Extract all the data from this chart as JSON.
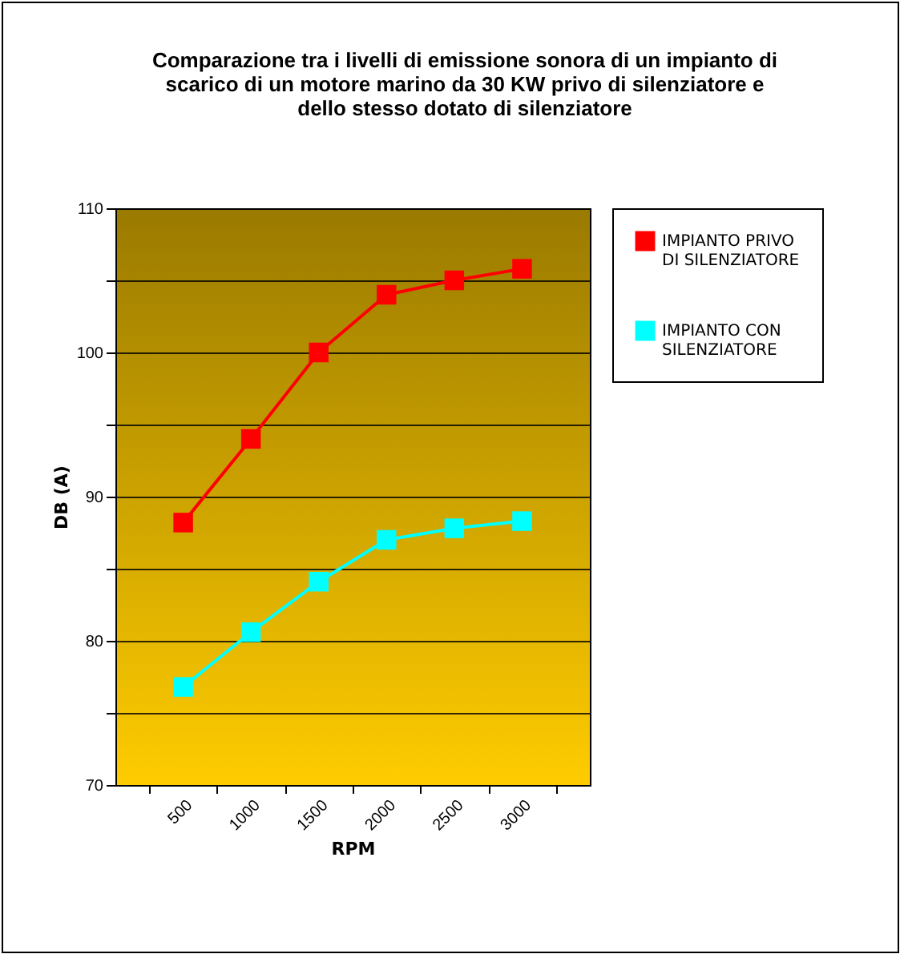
{
  "chart_data": {
    "type": "line",
    "title": "Comparazione tra i livelli di emissione sonora di un impianto di scarico di un motore marino da 30 KW privo di silenziatore e dello stesso dotato di silenziatore",
    "xlabel": "RPM",
    "ylabel": "DB (A)",
    "categories": [
      "500",
      "1000",
      "1500",
      "2000",
      "2500",
      "3000"
    ],
    "series": [
      {
        "name": "IMPIANTO PRIVO DI SILENZIATORE",
        "color": "#ff0000",
        "values": [
          88.2,
          94,
          100,
          104,
          105,
          105.8
        ]
      },
      {
        "name": "IMPIANTO CON SILENZIATORE",
        "color": "#00ffff",
        "values": [
          76.8,
          80.6,
          84.1,
          87,
          87.8,
          88.3
        ]
      }
    ],
    "ylim": [
      70,
      110
    ],
    "yticks": [
      70,
      {
        "value": 75,
        "label": null
      },
      80,
      {
        "value": 85,
        "label": null
      },
      90,
      {
        "value": 95,
        "label": null
      },
      100,
      {
        "value": 105,
        "label": null
      },
      110
    ],
    "grid": "y",
    "legend": "right",
    "marker": "square",
    "line_style": "solid"
  }
}
